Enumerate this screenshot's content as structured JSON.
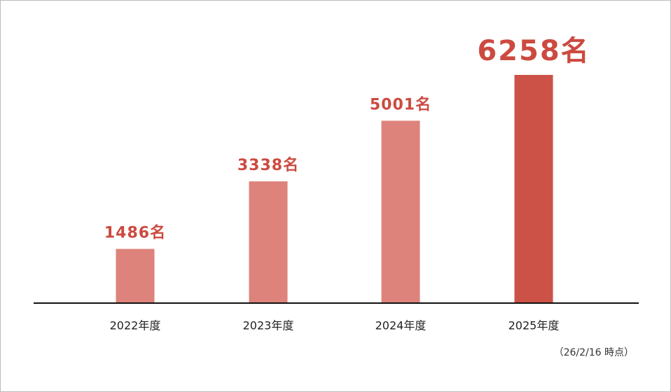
{
  "chart_data": {
    "type": "bar",
    "categories": [
      "2022年度",
      "2023年度",
      "2024年度",
      "2025年度"
    ],
    "values": [
      1486,
      3338,
      5001,
      6258
    ],
    "value_labels": [
      "1486名",
      "3338名",
      "5001名",
      "6258名"
    ],
    "colors": [
      "#dd837b",
      "#dd837b",
      "#dd837b",
      "#cc5147"
    ],
    "annotation": "（26/2/16 時点）"
  }
}
